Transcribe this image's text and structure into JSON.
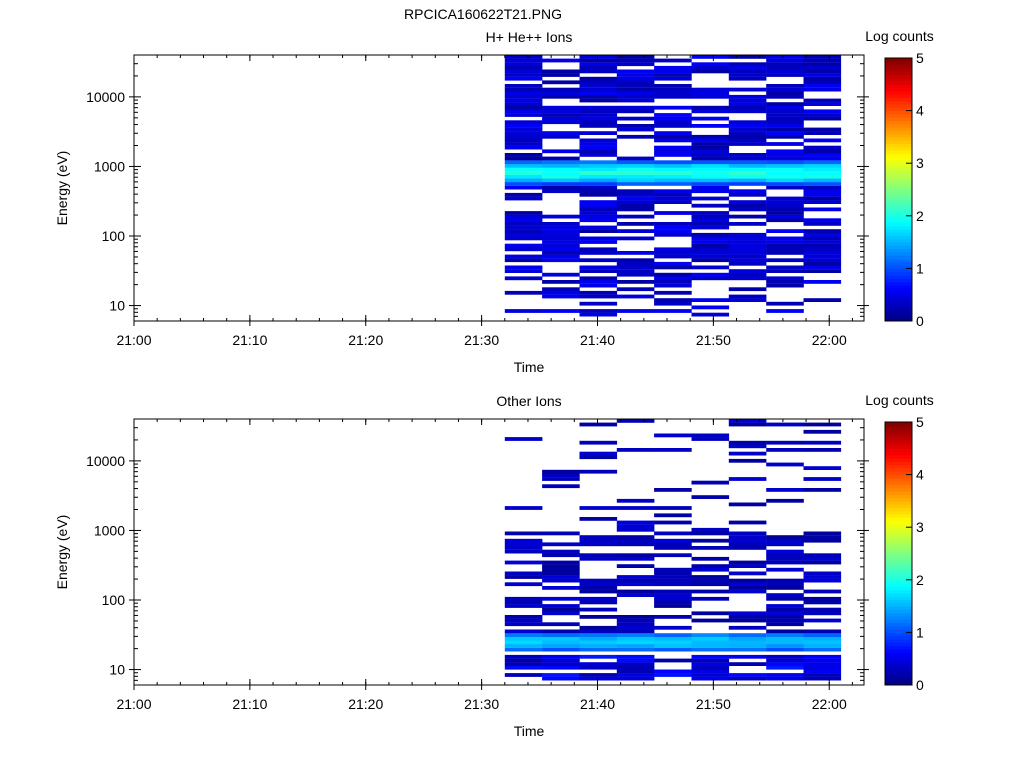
{
  "figure": {
    "title": "RPCICA160622T21.PNG"
  },
  "colors": {
    "axis": "#000000",
    "no_data": "#ffffff",
    "colormap": [
      "#00007f",
      "#0000ff",
      "#0080ff",
      "#00ffff",
      "#80ff80",
      "#ffff00",
      "#ff8000",
      "#ff0000",
      "#7f0000"
    ]
  },
  "chart_data": [
    {
      "type": "heatmap",
      "title": "H+ He++ Ions",
      "xlabel": "Time",
      "ylabel": "Energy (eV)",
      "xlim": [
        "21:00",
        "22:03"
      ],
      "ylim": [
        6,
        40000
      ],
      "yscale": "log",
      "x_ticks": [
        "21:00",
        "21:10",
        "21:20",
        "21:30",
        "21:40",
        "21:50",
        "22:00"
      ],
      "y_ticks": [
        "10",
        "100",
        "1000",
        "10000"
      ],
      "colorbar": {
        "label": "Log counts",
        "range": [
          0,
          5
        ],
        "ticks": [
          "0",
          "1",
          "2",
          "3",
          "4",
          "5"
        ]
      },
      "data_start": "21:32",
      "data_end": "22:01",
      "time_bins": 9,
      "features": [
        {
          "description": "broad band",
          "energy_range_eV": [
            550,
            1200
          ],
          "log_counts_peak": 2.0
        },
        {
          "description": "scattered background",
          "energy_range_eV": [
            20,
            40000
          ],
          "log_counts": 0.4
        },
        {
          "description": "sparse low energy",
          "energy_range_eV": [
            7,
            20
          ],
          "log_counts": 0.3
        }
      ]
    },
    {
      "type": "heatmap",
      "title": "Other Ions",
      "xlabel": "Time",
      "ylabel": "Energy (eV)",
      "xlim": [
        "21:00",
        "22:03"
      ],
      "ylim": [
        6,
        40000
      ],
      "yscale": "log",
      "x_ticks": [
        "21:00",
        "21:10",
        "21:20",
        "21:30",
        "21:40",
        "21:50",
        "22:00"
      ],
      "y_ticks": [
        "10",
        "100",
        "1000",
        "10000"
      ],
      "colorbar": {
        "label": "Log counts",
        "range": [
          0,
          5
        ],
        "ticks": [
          "0",
          "1",
          "2",
          "3",
          "4",
          "5"
        ]
      },
      "data_start": "21:32",
      "data_end": "22:01",
      "time_bins": 9,
      "features": [
        {
          "description": "low energy band",
          "energy_range_eV": [
            18,
            35
          ],
          "log_counts_peak": 1.6
        },
        {
          "description": "scattered background",
          "energy_range_eV": [
            35,
            40000
          ],
          "log_counts": 0.3
        },
        {
          "description": "lowest channels",
          "energy_range_eV": [
            6,
            16
          ],
          "log_counts": 0.4
        }
      ]
    }
  ]
}
